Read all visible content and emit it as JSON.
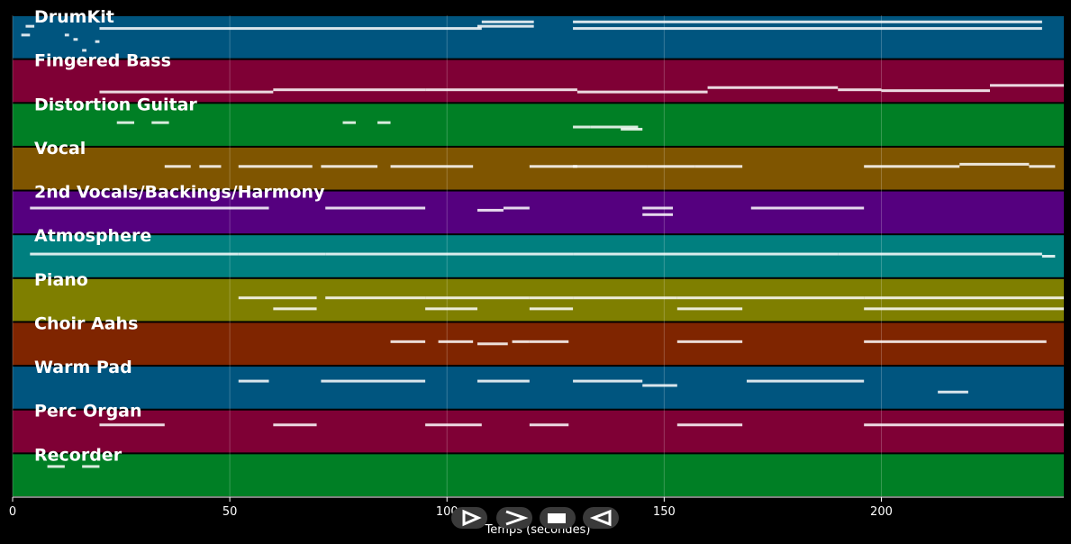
{
  "chart_data": {
    "type": "piano-roll",
    "xlabel": "Temps (secondes)",
    "xlim": [
      0,
      242
    ],
    "xticks": [
      0,
      50,
      100,
      150,
      200
    ],
    "grid": true,
    "tracks": [
      {
        "name": "DrumKit",
        "color": "#00557f",
        "segments": [
          [
            2,
            4,
            0.45
          ],
          [
            3,
            5,
            0.25
          ],
          [
            12,
            13,
            0.45
          ],
          [
            14,
            15,
            0.55
          ],
          [
            16,
            17,
            0.8
          ],
          [
            19,
            20,
            0.6
          ],
          [
            20,
            108,
            0.3
          ],
          [
            107,
            120,
            0.25
          ],
          [
            108,
            120,
            0.15
          ],
          [
            129,
            237,
            0.15
          ],
          [
            129,
            237,
            0.3
          ]
        ]
      },
      {
        "name": "Fingered Bass",
        "color": "#7f0035",
        "segments": [
          [
            20,
            60,
            0.75
          ],
          [
            60,
            95,
            0.7
          ],
          [
            95,
            130,
            0.7
          ],
          [
            130,
            160,
            0.75
          ],
          [
            160,
            190,
            0.65
          ],
          [
            190,
            200,
            0.7
          ],
          [
            200,
            225,
            0.72
          ],
          [
            225,
            242,
            0.6
          ]
        ]
      },
      {
        "name": "Distortion Guitar",
        "color": "#007f25",
        "segments": [
          [
            24,
            28,
            0.45
          ],
          [
            32,
            36,
            0.45
          ],
          [
            76,
            79,
            0.45
          ],
          [
            84,
            87,
            0.45
          ],
          [
            129,
            133,
            0.55
          ],
          [
            133,
            144,
            0.55
          ],
          [
            140,
            145,
            0.6
          ]
        ]
      },
      {
        "name": "Vocal",
        "color": "#7f5500",
        "segments": [
          [
            35,
            41,
            0.45
          ],
          [
            43,
            48,
            0.45
          ],
          [
            52,
            69,
            0.45
          ],
          [
            71,
            84,
            0.45
          ],
          [
            87,
            106,
            0.45
          ],
          [
            119,
            130,
            0.45
          ],
          [
            129,
            146,
            0.45
          ],
          [
            146,
            157,
            0.45
          ],
          [
            157,
            168,
            0.45
          ],
          [
            196,
            218,
            0.45
          ],
          [
            218,
            234,
            0.4
          ],
          [
            234,
            240,
            0.45
          ]
        ]
      },
      {
        "name": "2nd Vocals/Backings/Harmony",
        "color": "#55007f",
        "segments": [
          [
            4,
            45,
            0.4
          ],
          [
            45,
            59,
            0.4
          ],
          [
            72,
            90,
            0.4
          ],
          [
            90,
            95,
            0.4
          ],
          [
            107,
            113,
            0.45
          ],
          [
            113,
            119,
            0.4
          ],
          [
            145,
            152,
            0.4
          ],
          [
            145,
            152,
            0.55
          ],
          [
            170,
            196,
            0.4
          ]
        ]
      },
      {
        "name": "Atmosphere",
        "color": "#007f7f",
        "segments": [
          [
            4,
            52,
            0.45
          ],
          [
            52,
            72,
            0.45
          ],
          [
            72,
            129,
            0.45
          ],
          [
            129,
            190,
            0.45
          ],
          [
            190,
            237,
            0.45
          ],
          [
            237,
            240,
            0.5
          ]
        ]
      },
      {
        "name": "Piano",
        "color": "#7f7f00",
        "segments": [
          [
            52,
            70,
            0.45
          ],
          [
            60,
            70,
            0.7
          ],
          [
            72,
            95,
            0.45
          ],
          [
            95,
            119,
            0.45
          ],
          [
            95,
            107,
            0.7
          ],
          [
            119,
            129,
            0.45
          ],
          [
            119,
            129,
            0.7
          ],
          [
            129,
            153,
            0.45
          ],
          [
            153,
            196,
            0.45
          ],
          [
            153,
            168,
            0.7
          ],
          [
            196,
            242,
            0.45
          ],
          [
            196,
            242,
            0.7
          ]
        ]
      },
      {
        "name": "Choir Aahs",
        "color": "#7f2500",
        "segments": [
          [
            87,
            95,
            0.45
          ],
          [
            98,
            106,
            0.45
          ],
          [
            107,
            114,
            0.5
          ],
          [
            115,
            119,
            0.45
          ],
          [
            119,
            128,
            0.45
          ],
          [
            153,
            168,
            0.45
          ],
          [
            196,
            238,
            0.45
          ]
        ]
      },
      {
        "name": "Warm Pad",
        "color": "#00557f",
        "segments": [
          [
            52,
            59,
            0.35
          ],
          [
            71,
            95,
            0.35
          ],
          [
            107,
            119,
            0.35
          ],
          [
            129,
            145,
            0.35
          ],
          [
            145,
            153,
            0.45
          ],
          [
            169,
            196,
            0.35
          ],
          [
            213,
            220,
            0.6
          ]
        ]
      },
      {
        "name": "Perc Organ",
        "color": "#7f0035",
        "segments": [
          [
            20,
            35,
            0.35
          ],
          [
            60,
            70,
            0.35
          ],
          [
            95,
            108,
            0.35
          ],
          [
            119,
            128,
            0.35
          ],
          [
            153,
            168,
            0.35
          ],
          [
            196,
            242,
            0.35
          ]
        ]
      },
      {
        "name": "Recorder",
        "color": "#007f25",
        "segments": [
          [
            8,
            12,
            0.3
          ],
          [
            16,
            20,
            0.3
          ]
        ]
      }
    ]
  },
  "controls": {
    "play": "play-icon",
    "forward": "fast-forward-icon",
    "stop": "stop-icon",
    "rewind": "rewind-icon"
  }
}
